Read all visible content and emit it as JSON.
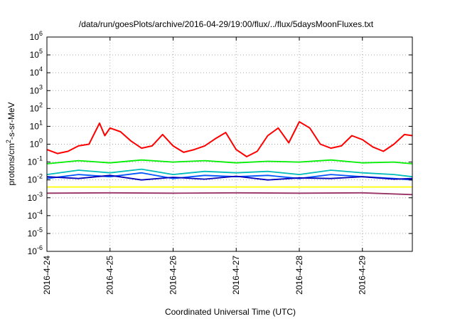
{
  "chart_data": {
    "type": "line",
    "title": "/data/run/goesPlots/archive/2016-04-29/19:00/flux/../flux/5daysMoonFluxes.txt",
    "xlabel": "Coordinated Universal Time (UTC)",
    "ylabel_parts": [
      "protons/cm",
      "2",
      "-s-sr-MeV"
    ],
    "y_scale": "log",
    "ylim_exp": [
      -6,
      6
    ],
    "y_ticks": [
      {
        "base": "10",
        "exp": "-6"
      },
      {
        "base": "10",
        "exp": "-5"
      },
      {
        "base": "10",
        "exp": "-4"
      },
      {
        "base": "10",
        "exp": "-3"
      },
      {
        "base": "10",
        "exp": "-2"
      },
      {
        "base": "10",
        "exp": "-1"
      },
      {
        "base": "10",
        "exp": "0"
      },
      {
        "base": "10",
        "exp": "1"
      },
      {
        "base": "10",
        "exp": "2"
      },
      {
        "base": "10",
        "exp": "3"
      },
      {
        "base": "10",
        "exp": "4"
      },
      {
        "base": "10",
        "exp": "5"
      },
      {
        "base": "10",
        "exp": "6"
      }
    ],
    "x_start": "2016-04-24 00:00",
    "x_end": "2016-04-29 19:00",
    "x_tick_labels": [
      "2016-4-24",
      "2016-4-25",
      "2016-4-26",
      "2016-4-27",
      "2016-4-28",
      "2016-4-29"
    ],
    "grid": true,
    "series": [
      {
        "color": "#ff0000",
        "x": [
          "2016-04-24 00:00",
          "2016-04-24 04:00",
          "2016-04-24 08:00",
          "2016-04-24 12:00",
          "2016-04-24 16:00",
          "2016-04-24 20:00",
          "2016-04-24 22:00",
          "2016-04-25 00:00",
          "2016-04-25 04:00",
          "2016-04-25 08:00",
          "2016-04-25 12:00",
          "2016-04-25 16:00",
          "2016-04-25 20:00",
          "2016-04-26 00:00",
          "2016-04-26 04:00",
          "2016-04-26 08:00",
          "2016-04-26 12:00",
          "2016-04-26 16:00",
          "2016-04-26 20:00",
          "2016-04-27 00:00",
          "2016-04-27 04:00",
          "2016-04-27 08:00",
          "2016-04-27 12:00",
          "2016-04-27 16:00",
          "2016-04-27 20:00",
          "2016-04-28 00:00",
          "2016-04-28 04:00",
          "2016-04-28 08:00",
          "2016-04-28 12:00",
          "2016-04-28 16:00",
          "2016-04-28 20:00",
          "2016-04-29 00:00",
          "2016-04-29 04:00",
          "2016-04-29 08:00",
          "2016-04-29 12:00",
          "2016-04-29 16:00",
          "2016-04-29 19:00"
        ],
        "values": [
          0.5,
          0.3,
          0.4,
          0.8,
          1.0,
          15,
          3,
          8,
          5,
          1.5,
          0.6,
          0.8,
          3.5,
          0.8,
          0.35,
          0.5,
          0.8,
          2,
          4.5,
          0.5,
          0.2,
          0.4,
          3,
          8,
          1.2,
          18,
          8,
          1,
          0.6,
          0.8,
          3,
          1.8,
          0.7,
          0.4,
          1,
          3.5,
          3
        ]
      },
      {
        "color": "#00ee00",
        "x": [
          "2016-04-24 00:00",
          "2016-04-24 12:00",
          "2016-04-25 00:00",
          "2016-04-25 12:00",
          "2016-04-26 00:00",
          "2016-04-26 12:00",
          "2016-04-27 00:00",
          "2016-04-27 12:00",
          "2016-04-28 00:00",
          "2016-04-28 12:00",
          "2016-04-29 00:00",
          "2016-04-29 12:00",
          "2016-04-29 19:00"
        ],
        "values": [
          0.08,
          0.12,
          0.09,
          0.13,
          0.1,
          0.12,
          0.09,
          0.11,
          0.1,
          0.13,
          0.09,
          0.1,
          0.08
        ]
      },
      {
        "color": "#00bbbb",
        "x": [
          "2016-04-24 00:00",
          "2016-04-24 12:00",
          "2016-04-25 00:00",
          "2016-04-25 12:00",
          "2016-04-26 00:00",
          "2016-04-26 12:00",
          "2016-04-27 00:00",
          "2016-04-27 12:00",
          "2016-04-28 00:00",
          "2016-04-28 12:00",
          "2016-04-29 00:00",
          "2016-04-29 12:00",
          "2016-04-29 19:00"
        ],
        "values": [
          0.02,
          0.035,
          0.025,
          0.04,
          0.02,
          0.03,
          0.025,
          0.03,
          0.02,
          0.035,
          0.025,
          0.02,
          0.015
        ]
      },
      {
        "color": "#0055ff",
        "x": [
          "2016-04-24 00:00",
          "2016-04-24 12:00",
          "2016-04-25 00:00",
          "2016-04-25 12:00",
          "2016-04-26 00:00",
          "2016-04-26 12:00",
          "2016-04-27 00:00",
          "2016-04-27 12:00",
          "2016-04-28 00:00",
          "2016-04-28 12:00",
          "2016-04-29 00:00",
          "2016-04-29 12:00",
          "2016-04-29 19:00"
        ],
        "values": [
          0.012,
          0.02,
          0.015,
          0.025,
          0.012,
          0.018,
          0.015,
          0.018,
          0.012,
          0.02,
          0.015,
          0.012,
          0.01
        ]
      },
      {
        "color": "#0000bb",
        "x": [
          "2016-04-24 00:00",
          "2016-04-24 12:00",
          "2016-04-25 00:00",
          "2016-04-25 12:00",
          "2016-04-26 00:00",
          "2016-04-26 12:00",
          "2016-04-27 00:00",
          "2016-04-27 12:00",
          "2016-04-28 00:00",
          "2016-04-28 12:00",
          "2016-04-29 00:00",
          "2016-04-29 12:00",
          "2016-04-29 19:00"
        ],
        "values": [
          0.015,
          0.012,
          0.018,
          0.01,
          0.014,
          0.011,
          0.016,
          0.01,
          0.013,
          0.012,
          0.015,
          0.011,
          0.012
        ]
      },
      {
        "color": "#ffff00",
        "x": [
          "2016-04-24 00:00",
          "2016-04-25 00:00",
          "2016-04-26 00:00",
          "2016-04-27 00:00",
          "2016-04-28 00:00",
          "2016-04-29 00:00",
          "2016-04-29 19:00"
        ],
        "values": [
          0.004,
          0.004,
          0.004,
          0.004,
          0.004,
          0.004,
          0.004
        ]
      },
      {
        "color": "#993366",
        "x": [
          "2016-04-24 00:00",
          "2016-04-25 00:00",
          "2016-04-26 00:00",
          "2016-04-27 00:00",
          "2016-04-28 00:00",
          "2016-04-29 00:00",
          "2016-04-29 19:00"
        ],
        "values": [
          0.0018,
          0.0019,
          0.0018,
          0.0019,
          0.0018,
          0.0019,
          0.0015
        ]
      }
    ]
  }
}
